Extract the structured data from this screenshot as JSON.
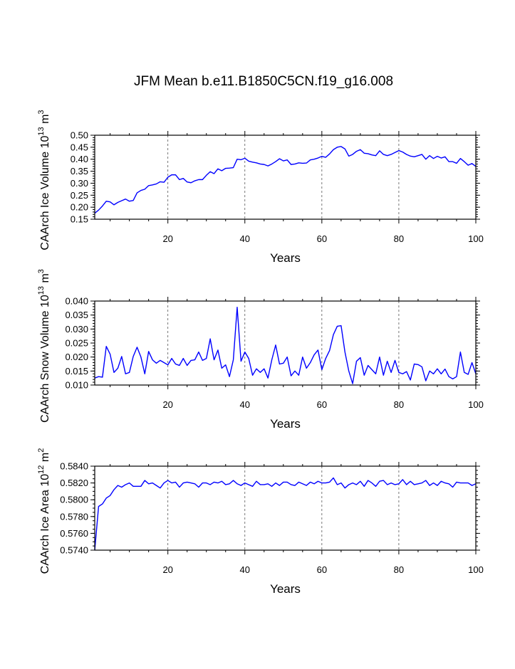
{
  "title": "JFM Mean b.e11.B1850C5CN.f19_g16.008",
  "chart_data": [
    {
      "type": "line",
      "ylabel": "CAArch Ice Volume",
      "ylabel_exp": "13",
      "ylabel_unit": "m",
      "ylabel_unit_exp": "3",
      "xlabel": "Years",
      "xlim": [
        1,
        100
      ],
      "ylim": [
        0.15,
        0.5
      ],
      "xticks": [
        20,
        40,
        60,
        80,
        100
      ],
      "xtick_labels": [
        "20",
        "40",
        "60",
        "80",
        "100"
      ],
      "xgrid": [
        20,
        40,
        60,
        80
      ],
      "yticks": [
        0.15,
        0.2,
        0.25,
        0.3,
        0.35,
        0.4,
        0.45,
        0.5
      ],
      "ytick_labels": [
        "0.15",
        "0.20",
        "0.25",
        "0.30",
        "0.35",
        "0.40",
        "0.45",
        "0.50"
      ],
      "yminor": 0.01,
      "color": "#0000ff",
      "x": [
        1,
        2,
        3,
        4,
        5,
        6,
        7,
        8,
        9,
        10,
        11,
        12,
        13,
        14,
        15,
        16,
        17,
        18,
        19,
        20,
        21,
        22,
        23,
        24,
        25,
        26,
        27,
        28,
        29,
        30,
        31,
        32,
        33,
        34,
        35,
        36,
        37,
        38,
        39,
        40,
        41,
        42,
        43,
        44,
        45,
        46,
        47,
        48,
        49,
        50,
        51,
        52,
        53,
        54,
        55,
        56,
        57,
        58,
        59,
        60,
        61,
        62,
        63,
        64,
        65,
        66,
        67,
        68,
        69,
        70,
        71,
        72,
        73,
        74,
        75,
        76,
        77,
        78,
        79,
        80,
        81,
        82,
        83,
        84,
        85,
        86,
        87,
        88,
        89,
        90,
        91,
        92,
        93,
        94,
        95,
        96,
        97,
        98,
        99,
        100
      ],
      "y": [
        0.175,
        0.188,
        0.205,
        0.225,
        0.222,
        0.21,
        0.22,
        0.227,
        0.234,
        0.225,
        0.228,
        0.26,
        0.27,
        0.275,
        0.29,
        0.293,
        0.297,
        0.306,
        0.304,
        0.325,
        0.335,
        0.335,
        0.315,
        0.32,
        0.305,
        0.302,
        0.31,
        0.315,
        0.315,
        0.333,
        0.348,
        0.34,
        0.36,
        0.352,
        0.362,
        0.363,
        0.365,
        0.4,
        0.398,
        0.404,
        0.392,
        0.388,
        0.385,
        0.38,
        0.378,
        0.372,
        0.38,
        0.39,
        0.402,
        0.393,
        0.397,
        0.378,
        0.38,
        0.385,
        0.383,
        0.384,
        0.397,
        0.4,
        0.405,
        0.412,
        0.408,
        0.422,
        0.44,
        0.45,
        0.453,
        0.443,
        0.413,
        0.42,
        0.433,
        0.44,
        0.425,
        0.423,
        0.418,
        0.415,
        0.435,
        0.42,
        0.415,
        0.42,
        0.428,
        0.436,
        0.43,
        0.42,
        0.413,
        0.41,
        0.415,
        0.42,
        0.4,
        0.415,
        0.403,
        0.412,
        0.405,
        0.41,
        0.39,
        0.39,
        0.383,
        0.403,
        0.39,
        0.375,
        0.382,
        0.37
      ]
    },
    {
      "type": "line",
      "ylabel": "CAArch Snow Volume",
      "ylabel_exp": "13",
      "ylabel_unit": "m",
      "ylabel_unit_exp": "3",
      "xlabel": "Years",
      "xlim": [
        1,
        100
      ],
      "ylim": [
        0.01,
        0.04
      ],
      "xticks": [
        20,
        40,
        60,
        80,
        100
      ],
      "xtick_labels": [
        "20",
        "40",
        "60",
        "80",
        "100"
      ],
      "xgrid": [
        20,
        40,
        60,
        80
      ],
      "yticks": [
        0.01,
        0.015,
        0.02,
        0.025,
        0.03,
        0.035,
        0.04
      ],
      "ytick_labels": [
        "0.010",
        "0.015",
        "0.020",
        "0.025",
        "0.030",
        "0.035",
        "0.040"
      ],
      "yminor": 0.001,
      "color": "#0000ff",
      "x": [
        1,
        2,
        3,
        4,
        5,
        6,
        7,
        8,
        9,
        10,
        11,
        12,
        13,
        14,
        15,
        16,
        17,
        18,
        19,
        20,
        21,
        22,
        23,
        24,
        25,
        26,
        27,
        28,
        29,
        30,
        31,
        32,
        33,
        34,
        35,
        36,
        37,
        38,
        39,
        40,
        41,
        42,
        43,
        44,
        45,
        46,
        47,
        48,
        49,
        50,
        51,
        52,
        53,
        54,
        55,
        56,
        57,
        58,
        59,
        60,
        61,
        62,
        63,
        64,
        65,
        66,
        67,
        68,
        69,
        70,
        71,
        72,
        73,
        74,
        75,
        76,
        77,
        78,
        79,
        80,
        81,
        82,
        83,
        84,
        85,
        86,
        87,
        88,
        89,
        90,
        91,
        92,
        93,
        94,
        95,
        96,
        97,
        98,
        99,
        100
      ],
      "y": [
        0.0125,
        0.013,
        0.0128,
        0.0238,
        0.021,
        0.0145,
        0.016,
        0.0202,
        0.014,
        0.0145,
        0.0202,
        0.0235,
        0.02,
        0.014,
        0.022,
        0.019,
        0.0178,
        0.0188,
        0.018,
        0.0172,
        0.0195,
        0.0175,
        0.017,
        0.0195,
        0.017,
        0.0188,
        0.019,
        0.0218,
        0.0188,
        0.0195,
        0.0265,
        0.019,
        0.0225,
        0.016,
        0.0172,
        0.013,
        0.019,
        0.0378,
        0.0185,
        0.0218,
        0.0195,
        0.0135,
        0.0158,
        0.0145,
        0.0158,
        0.0125,
        0.019,
        0.0243,
        0.0175,
        0.0178,
        0.02,
        0.0133,
        0.015,
        0.0135,
        0.02,
        0.016,
        0.018,
        0.0208,
        0.0225,
        0.0155,
        0.0195,
        0.0223,
        0.028,
        0.031,
        0.0312,
        0.0218,
        0.015,
        0.0105,
        0.0185,
        0.0198,
        0.0135,
        0.017,
        0.0155,
        0.014,
        0.02,
        0.0135,
        0.0185,
        0.0145,
        0.0188,
        0.0145,
        0.014,
        0.0148,
        0.0118,
        0.0175,
        0.0173,
        0.0165,
        0.0115,
        0.015,
        0.014,
        0.0158,
        0.014,
        0.0157,
        0.013,
        0.0122,
        0.013,
        0.0218,
        0.0145,
        0.0138,
        0.018,
        0.014
      ]
    },
    {
      "type": "line",
      "ylabel": "CAArch Ice Area",
      "ylabel_exp": "12",
      "ylabel_unit": "m",
      "ylabel_unit_exp": "2",
      "xlabel": "Years",
      "xlim": [
        1,
        100
      ],
      "ylim": [
        0.574,
        0.584
      ],
      "xticks": [
        20,
        40,
        60,
        80,
        100
      ],
      "xtick_labels": [
        "20",
        "40",
        "60",
        "80",
        "100"
      ],
      "xgrid": [
        20,
        40,
        60,
        80
      ],
      "yticks": [
        0.574,
        0.576,
        0.578,
        0.58,
        0.582,
        0.584
      ],
      "ytick_labels": [
        "0.5740",
        "0.5760",
        "0.5780",
        "0.5800",
        "0.5820",
        "0.5840"
      ],
      "yminor": 0.0005,
      "color": "#0000ff",
      "x": [
        1,
        2,
        3,
        4,
        5,
        6,
        7,
        8,
        9,
        10,
        11,
        12,
        13,
        14,
        15,
        16,
        17,
        18,
        19,
        20,
        21,
        22,
        23,
        24,
        25,
        26,
        27,
        28,
        29,
        30,
        31,
        32,
        33,
        34,
        35,
        36,
        37,
        38,
        39,
        40,
        41,
        42,
        43,
        44,
        45,
        46,
        47,
        48,
        49,
        50,
        51,
        52,
        53,
        54,
        55,
        56,
        57,
        58,
        59,
        60,
        61,
        62,
        63,
        64,
        65,
        66,
        67,
        68,
        69,
        70,
        71,
        72,
        73,
        74,
        75,
        76,
        77,
        78,
        79,
        80,
        81,
        82,
        83,
        84,
        85,
        86,
        87,
        88,
        89,
        90,
        91,
        92,
        93,
        94,
        95,
        96,
        97,
        98,
        99,
        100
      ],
      "y": [
        0.574,
        0.5792,
        0.5795,
        0.5802,
        0.5805,
        0.5812,
        0.5817,
        0.5815,
        0.5818,
        0.582,
        0.5816,
        0.5816,
        0.5816,
        0.5823,
        0.5819,
        0.582,
        0.5817,
        0.5814,
        0.582,
        0.5823,
        0.582,
        0.5821,
        0.5815,
        0.582,
        0.5821,
        0.582,
        0.5819,
        0.5815,
        0.582,
        0.582,
        0.5818,
        0.5821,
        0.582,
        0.5822,
        0.5818,
        0.5819,
        0.5823,
        0.5819,
        0.5817,
        0.582,
        0.5818,
        0.5816,
        0.5822,
        0.5818,
        0.5818,
        0.5819,
        0.5816,
        0.582,
        0.5817,
        0.5821,
        0.5821,
        0.5818,
        0.5817,
        0.5821,
        0.5819,
        0.5817,
        0.5821,
        0.5819,
        0.5822,
        0.582,
        0.582,
        0.5821,
        0.5826,
        0.5818,
        0.582,
        0.5814,
        0.5818,
        0.582,
        0.5818,
        0.5822,
        0.5816,
        0.5823,
        0.582,
        0.5816,
        0.5822,
        0.5823,
        0.5818,
        0.582,
        0.5818,
        0.5819,
        0.5824,
        0.5818,
        0.5822,
        0.5818,
        0.5819,
        0.582,
        0.5823,
        0.5817,
        0.582,
        0.5817,
        0.5822,
        0.582,
        0.5819,
        0.5815,
        0.5821,
        0.582,
        0.582,
        0.582,
        0.5817,
        0.5819
      ]
    }
  ]
}
